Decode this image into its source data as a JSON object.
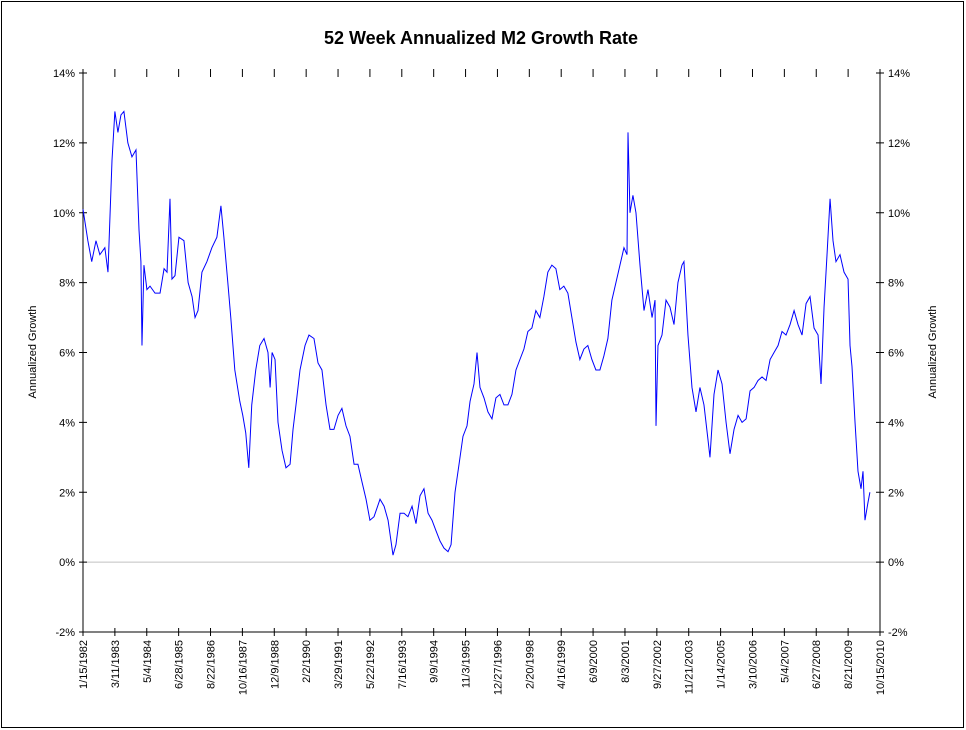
{
  "chart_data": {
    "type": "line",
    "title": "52 Week Annualized M2 Growth Rate",
    "ylabel": "Annualized Growth",
    "y2label": "Annualized Growth",
    "series": [
      {
        "color": "#0000ff",
        "x": [
          "1982-01-15",
          "1982-03-20",
          "1982-05-10",
          "1982-07-05",
          "1982-08-25",
          "1982-10-30",
          "1982-12-10",
          "1983-02-01",
          "1983-03-11",
          "1983-04-20",
          "1983-05-30",
          "1983-07-08",
          "1983-08-29",
          "1983-10-22",
          "1983-12-14",
          "1984-01-23",
          "1984-02-17",
          "1984-03-02",
          "1984-03-28",
          "1984-05-06",
          "1984-06-16",
          "1984-08-21",
          "1984-10-26",
          "1984-12-18",
          "1985-01-26",
          "1985-03-06",
          "1985-04-01",
          "1985-05-11",
          "1985-07-02",
          "1985-09-06",
          "1985-10-31",
          "1985-12-22",
          "1986-01-30",
          "1986-03-10",
          "1986-05-01",
          "1986-07-05",
          "1986-09-09",
          "1986-11-14",
          "1987-01-06",
          "1987-02-14",
          "1987-04-07",
          "1987-05-16",
          "1987-07-08",
          "1987-09-12",
          "1987-10-21",
          "1987-11-29",
          "1988-01-08",
          "1988-02-16",
          "1988-04-09",
          "1988-06-01",
          "1988-07-27",
          "1988-09-17",
          "1988-10-15",
          "1988-11-10",
          "1988-12-19",
          "1989-01-27",
          "1989-03-21",
          "1989-05-12",
          "1989-07-05",
          "1989-08-13",
          "1989-09-21",
          "1989-11-13",
          "1990-01-18",
          "1990-03-11",
          "1990-05-16",
          "1990-07-08",
          "1990-08-29",
          "1990-10-22",
          "1990-12-13",
          "1991-02-03",
          "1991-03-29",
          "1991-05-19",
          "1991-07-12",
          "1991-09-02",
          "1991-10-26",
          "1991-12-16",
          "1992-02-07",
          "1992-04-01",
          "1992-05-22",
          "1992-07-15",
          "1992-10-02",
          "1992-11-25",
          "1993-01-16",
          "1993-02-24",
          "1993-03-22",
          "1993-04-30",
          "1993-06-23",
          "1993-08-14",
          "1993-10-05",
          "1993-11-28",
          "1994-01-19",
          "1994-03-13",
          "1994-05-04",
          "1994-06-27",
          "1994-08-18",
          "1994-10-09",
          "1994-12-02",
          "1995-01-23",
          "1995-03-17",
          "1995-04-26",
          "1995-06-17",
          "1995-08-09",
          "1995-09-30",
          "1995-11-22",
          "1996-01-01",
          "1996-02-22",
          "1996-04-02",
          "1996-05-11",
          "1996-07-03",
          "1996-08-24",
          "1996-10-16",
          "1996-12-07",
          "1997-01-29",
          "1997-03-23",
          "1997-05-14",
          "1997-07-06",
          "1997-08-28",
          "1997-10-19",
          "1997-12-11",
          "1998-02-01",
          "1998-03-26",
          "1998-05-17",
          "1998-07-09",
          "1998-08-31",
          "1998-10-22",
          "1998-12-14",
          "1999-02-05",
          "1999-03-29",
          "1999-05-21",
          "1999-07-13",
          "1999-09-04",
          "1999-10-27",
          "1999-12-18",
          "2000-02-09",
          "2000-04-01",
          "2000-05-24",
          "2000-07-16",
          "2000-09-07",
          "2000-10-29",
          "2000-12-21",
          "2001-02-12",
          "2001-04-06",
          "2001-05-29",
          "2001-07-21",
          "2001-08-30",
          "2001-09-12",
          "2001-10-08",
          "2001-11-16",
          "2001-12-26",
          "2002-02-17",
          "2002-04-11",
          "2002-06-02",
          "2002-07-26",
          "2002-09-03",
          "2002-09-16",
          "2002-10-12",
          "2002-12-04",
          "2003-01-26",
          "2003-03-19",
          "2003-05-11",
          "2003-07-02",
          "2003-08-24",
          "2003-09-19",
          "2003-11-11",
          "2004-01-03",
          "2004-02-25",
          "2004-04-17",
          "2004-06-09",
          "2004-08-01",
          "2004-08-27",
          "2004-10-19",
          "2004-12-11",
          "2005-02-02",
          "2005-03-27",
          "2005-05-18",
          "2005-07-10",
          "2005-09-01",
          "2005-10-24",
          "2005-12-16",
          "2006-02-06",
          "2006-03-31",
          "2006-05-22",
          "2006-07-14",
          "2006-09-05",
          "2006-10-28",
          "2006-12-19",
          "2007-02-10",
          "2007-04-03",
          "2007-05-26",
          "2007-07-18",
          "2007-09-09",
          "2007-10-31",
          "2007-12-23",
          "2008-02-14",
          "2008-04-06",
          "2008-05-29",
          "2008-07-21",
          "2008-08-29",
          "2008-10-08",
          "2008-11-16",
          "2008-12-26",
          "2009-02-03",
          "2009-03-14",
          "2009-05-06",
          "2009-06-28",
          "2009-08-20",
          "2009-09-15",
          "2009-10-11",
          "2009-11-20",
          "2009-12-29",
          "2010-02-07",
          "2010-03-05",
          "2010-03-31",
          "2010-05-09",
          "2010-06-04"
        ],
        "values": [
          10.1,
          9.2,
          8.6,
          9.2,
          8.8,
          9.0,
          8.3,
          11.5,
          12.9,
          12.3,
          12.8,
          12.9,
          12.0,
          11.6,
          11.8,
          9.5,
          8.6,
          6.2,
          8.5,
          7.8,
          7.9,
          7.7,
          7.7,
          8.4,
          8.3,
          10.4,
          8.1,
          8.2,
          9.3,
          9.2,
          8.0,
          7.6,
          7.0,
          7.2,
          8.3,
          8.6,
          9.0,
          9.3,
          10.2,
          9.3,
          8.0,
          7.0,
          5.5,
          4.6,
          4.2,
          3.7,
          2.7,
          4.5,
          5.5,
          6.2,
          6.4,
          6.0,
          5.0,
          6.0,
          5.8,
          4.0,
          3.2,
          2.7,
          2.8,
          3.8,
          4.5,
          5.5,
          6.2,
          6.5,
          6.4,
          5.7,
          5.5,
          4.5,
          3.8,
          3.8,
          4.2,
          4.4,
          3.9,
          3.6,
          2.8,
          2.8,
          2.3,
          1.8,
          1.2,
          1.3,
          1.8,
          1.6,
          1.2,
          0.6,
          0.2,
          0.5,
          1.4,
          1.4,
          1.3,
          1.6,
          1.1,
          1.9,
          2.1,
          1.4,
          1.2,
          0.9,
          0.6,
          0.4,
          0.3,
          0.5,
          2.0,
          2.8,
          3.6,
          3.9,
          4.6,
          5.1,
          6.0,
          5.0,
          4.7,
          4.3,
          4.1,
          4.7,
          4.8,
          4.5,
          4.5,
          4.8,
          5.5,
          5.8,
          6.1,
          6.6,
          6.7,
          7.2,
          7.0,
          7.6,
          8.3,
          8.5,
          8.4,
          7.8,
          7.9,
          7.7,
          7.0,
          6.3,
          5.8,
          6.1,
          6.2,
          5.8,
          5.5,
          5.5,
          5.9,
          6.4,
          7.5,
          8.0,
          8.5,
          9.0,
          8.8,
          12.3,
          10.0,
          10.5,
          10.0,
          8.5,
          7.2,
          7.8,
          7.0,
          7.5,
          3.9,
          6.2,
          6.5,
          7.5,
          7.3,
          6.8,
          8.0,
          8.5,
          8.6,
          6.5,
          5.0,
          4.3,
          5.0,
          4.5,
          3.5,
          3.0,
          4.8,
          5.5,
          5.1,
          4.0,
          3.1,
          3.8,
          4.2,
          4.0,
          4.1,
          4.9,
          5.0,
          5.2,
          5.3,
          5.2,
          5.8,
          6.0,
          6.2,
          6.6,
          6.5,
          6.8,
          7.2,
          6.8,
          6.5,
          7.4,
          7.6,
          6.7,
          6.5,
          5.1,
          7.3,
          8.8,
          10.4,
          9.2,
          8.6,
          8.8,
          8.3,
          8.1,
          6.2,
          5.6,
          4.0,
          2.6,
          2.1,
          2.6,
          1.2,
          1.7,
          2.0
        ]
      }
    ],
    "xlim": [
      "1982-01-15",
      "2010-10-15"
    ],
    "xticks": [
      {
        "value": "1982-01-15",
        "label": "1/15/1982"
      },
      {
        "value": "1983-03-11",
        "label": "3/11/1983"
      },
      {
        "value": "1984-05-04",
        "label": "5/4/1984"
      },
      {
        "value": "1985-06-28",
        "label": "6/28/1985"
      },
      {
        "value": "1986-08-22",
        "label": "8/22/1986"
      },
      {
        "value": "1987-10-16",
        "label": "10/16/1987"
      },
      {
        "value": "1988-12-09",
        "label": "12/9/1988"
      },
      {
        "value": "1990-02-02",
        "label": "2/2/1990"
      },
      {
        "value": "1991-03-29",
        "label": "3/29/1991"
      },
      {
        "value": "1992-05-22",
        "label": "5/22/1992"
      },
      {
        "value": "1993-07-16",
        "label": "7/16/1993"
      },
      {
        "value": "1994-09-09",
        "label": "9/9/1994"
      },
      {
        "value": "1995-11-03",
        "label": "11/3/1995"
      },
      {
        "value": "1996-12-27",
        "label": "12/27/1996"
      },
      {
        "value": "1998-02-20",
        "label": "2/20/1998"
      },
      {
        "value": "1999-04-16",
        "label": "4/16/1999"
      },
      {
        "value": "2000-06-09",
        "label": "6/9/2000"
      },
      {
        "value": "2001-08-03",
        "label": "8/3/2001"
      },
      {
        "value": "2002-09-27",
        "label": "9/27/2002"
      },
      {
        "value": "2003-11-21",
        "label": "11/21/2003"
      },
      {
        "value": "2005-01-14",
        "label": "1/14/2005"
      },
      {
        "value": "2006-03-10",
        "label": "3/10/2006"
      },
      {
        "value": "2007-05-04",
        "label": "5/4/2007"
      },
      {
        "value": "2008-06-27",
        "label": "6/27/2008"
      },
      {
        "value": "2009-08-21",
        "label": "8/21/2009"
      },
      {
        "value": "2010-10-15",
        "label": "10/15/2010"
      }
    ],
    "ylim": [
      -2,
      14
    ],
    "yticks": [
      {
        "value": -2,
        "label": "-2%"
      },
      {
        "value": 0,
        "label": "0%"
      },
      {
        "value": 2,
        "label": "2%"
      },
      {
        "value": 4,
        "label": "4%"
      },
      {
        "value": 6,
        "label": "6%"
      },
      {
        "value": 8,
        "label": "8%"
      },
      {
        "value": 10,
        "label": "10%"
      },
      {
        "value": 12,
        "label": "12%"
      },
      {
        "value": 14,
        "label": "14%"
      }
    ],
    "y2lim": [
      -2,
      14
    ],
    "y2ticks": [
      {
        "value": -2,
        "label": "-2%"
      },
      {
        "value": 0,
        "label": "0%"
      },
      {
        "value": 2,
        "label": "2%"
      },
      {
        "value": 4,
        "label": "4%"
      },
      {
        "value": 6,
        "label": "6%"
      },
      {
        "value": 8,
        "label": "8%"
      },
      {
        "value": 10,
        "label": "10%"
      },
      {
        "value": 12,
        "label": "12%"
      },
      {
        "value": 14,
        "label": "14%"
      }
    ],
    "grid": false
  }
}
